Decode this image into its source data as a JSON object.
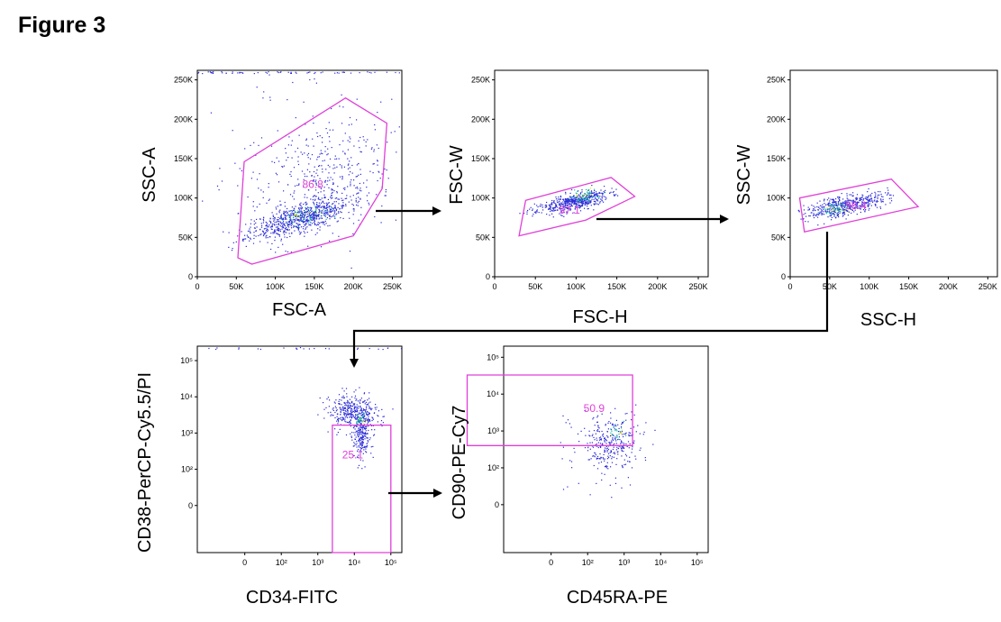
{
  "figure_title": "Figure 3",
  "colors": {
    "gate": "#e040d8",
    "dots": "#2a2ad8",
    "dense": "#14b8a0",
    "hot": "#e8e020",
    "axis": "#000000"
  },
  "chart_data": [
    {
      "id": "p1",
      "type": "scatter",
      "xlabel": "FSC-A",
      "ylabel": "SSC-A",
      "scale": "linear",
      "xlim": [
        0,
        262144
      ],
      "ylim": [
        0,
        262144
      ],
      "x_ticks": [
        {
          "v": 0,
          "label": "0"
        },
        {
          "v": 50000,
          "label": "50K"
        },
        {
          "v": 100000,
          "label": "100K"
        },
        {
          "v": 150000,
          "label": "150K"
        },
        {
          "v": 200000,
          "label": "200K"
        },
        {
          "v": 250000,
          "label": "250K"
        }
      ],
      "y_ticks": [
        {
          "v": 0,
          "label": "0"
        },
        {
          "v": 50000,
          "label": "50K"
        },
        {
          "v": 100000,
          "label": "100K"
        },
        {
          "v": 150000,
          "label": "150K"
        },
        {
          "v": 200000,
          "label": "200K"
        },
        {
          "v": 250000,
          "label": "250K"
        }
      ],
      "gate": {
        "label": "86.8",
        "label_at": [
          148000,
          113000
        ],
        "polygon": [
          [
            70000,
            16000
          ],
          [
            200000,
            52000
          ],
          [
            237000,
            112000
          ],
          [
            243000,
            195000
          ],
          [
            190000,
            227000
          ],
          [
            60000,
            146000
          ],
          [
            52000,
            24000
          ]
        ]
      },
      "population": {
        "seed": 11,
        "clusters": [
          {
            "n": 700,
            "cx": 130000,
            "cy": 75000,
            "sx": 32000,
            "sy": 13000,
            "rho": 0.72
          },
          {
            "n": 350,
            "cx": 165000,
            "cy": 125000,
            "sx": 45000,
            "sy": 38000,
            "rho": 0.45
          },
          {
            "n": 110,
            "cx": 130000,
            "cy": 140000,
            "sx": 70000,
            "sy": 65000,
            "rho": 0.0
          }
        ],
        "dense_core": {
          "cx": 140000,
          "cy": 78000,
          "sx": 14000,
          "sy": 6000,
          "n": 70
        },
        "top_band": 60
      }
    },
    {
      "id": "p2",
      "type": "scatter",
      "xlabel": "FSC-H",
      "ylabel": "FSC-W",
      "scale": "linear",
      "xlim": [
        0,
        262144
      ],
      "ylim": [
        0,
        262144
      ],
      "x_ticks": [
        {
          "v": 0,
          "label": "0"
        },
        {
          "v": 50000,
          "label": "50K"
        },
        {
          "v": 100000,
          "label": "100K"
        },
        {
          "v": 150000,
          "label": "150K"
        },
        {
          "v": 200000,
          "label": "200K"
        },
        {
          "v": 250000,
          "label": "250K"
        }
      ],
      "y_ticks": [
        {
          "v": 0,
          "label": "0"
        },
        {
          "v": 50000,
          "label": "50K"
        },
        {
          "v": 100000,
          "label": "100K"
        },
        {
          "v": 150000,
          "label": "150K"
        },
        {
          "v": 200000,
          "label": "200K"
        },
        {
          "v": 250000,
          "label": "250K"
        }
      ],
      "gate": {
        "label": "97.1",
        "label_at": [
          92000,
          80000
        ],
        "polygon": [
          [
            30000,
            52000
          ],
          [
            112000,
            72000
          ],
          [
            172000,
            102000
          ],
          [
            143000,
            126000
          ],
          [
            38000,
            97000
          ]
        ]
      },
      "population": {
        "seed": 23,
        "clusters": [
          {
            "n": 520,
            "cx": 95000,
            "cy": 95000,
            "sx": 22000,
            "sy": 7000,
            "rho": 0.65
          }
        ],
        "dense_core": {
          "cx": 108000,
          "cy": 102000,
          "sx": 10000,
          "sy": 4000,
          "n": 60
        },
        "top_band": 0
      }
    },
    {
      "id": "p3",
      "type": "scatter",
      "xlabel": "SSC-H",
      "ylabel": "SSC-W",
      "scale": "linear",
      "xlim": [
        0,
        262144
      ],
      "ylim": [
        0,
        262144
      ],
      "x_ticks": [
        {
          "v": 0,
          "label": "0"
        },
        {
          "v": 50000,
          "label": "50K"
        },
        {
          "v": 100000,
          "label": "100K"
        },
        {
          "v": 150000,
          "label": "150K"
        },
        {
          "v": 200000,
          "label": "200K"
        },
        {
          "v": 250000,
          "label": "250K"
        }
      ],
      "y_ticks": [
        {
          "v": 0,
          "label": "0"
        },
        {
          "v": 50000,
          "label": "50K"
        },
        {
          "v": 100000,
          "label": "100K"
        },
        {
          "v": 150000,
          "label": "150K"
        },
        {
          "v": 200000,
          "label": "200K"
        },
        {
          "v": 250000,
          "label": "250K"
        }
      ],
      "gate": {
        "label": "98.4",
        "label_at": [
          83000,
          86000
        ],
        "polygon": [
          [
            18000,
            57000
          ],
          [
            162000,
            89000
          ],
          [
            128000,
            124000
          ],
          [
            12000,
            100000
          ]
        ]
      },
      "population": {
        "seed": 37,
        "clusters": [
          {
            "n": 480,
            "cx": 70000,
            "cy": 92000,
            "sx": 25000,
            "sy": 8000,
            "rho": 0.6
          }
        ],
        "dense_core": {
          "cx": 58000,
          "cy": 87000,
          "sx": 9000,
          "sy": 4000,
          "n": 60
        },
        "top_band": 0
      }
    },
    {
      "id": "p4",
      "type": "scatter",
      "xlabel": "CD34-FITC",
      "ylabel": "CD38-PerCP-Cy5.5/PI",
      "scale": "biexponential",
      "xlim": [
        -300,
        200000
      ],
      "ylim": [
        -300,
        250000
      ],
      "x_ticks": [
        {
          "v": 0,
          "label": "0"
        },
        {
          "v": 100,
          "label": "10²"
        },
        {
          "v": 1000,
          "label": "10³"
        },
        {
          "v": 10000,
          "label": "10⁴"
        },
        {
          "v": 100000,
          "label": "10⁵"
        }
      ],
      "y_ticks": [
        {
          "v": 0,
          "label": "0"
        },
        {
          "v": 100,
          "label": "10²"
        },
        {
          "v": 1000,
          "label": "10³"
        },
        {
          "v": 10000,
          "label": "10⁴"
        },
        {
          "v": 100000,
          "label": "10⁵"
        }
      ],
      "gate": {
        "label": "25.1",
        "label_at": [
          9000,
          200
        ],
        "polygon": [
          [
            2500,
            -300
          ],
          [
            100000,
            -300
          ],
          [
            100000,
            1650
          ],
          [
            2500,
            1650
          ]
        ]
      },
      "population": {
        "seed": 53,
        "log_clusters": [
          {
            "n": 380,
            "cx": 4.0,
            "cy": 3.55,
            "sx": 0.38,
            "sy": 0.27,
            "rho": -0.15
          },
          {
            "n": 200,
            "cx": 4.2,
            "cy": 2.95,
            "sx": 0.12,
            "sy": 0.35,
            "rho": 0.0
          }
        ],
        "dense_core": {
          "cx": 4.15,
          "cy": 3.4,
          "sx": 0.07,
          "sy": 0.08,
          "n": 40
        },
        "top_band": 25
      }
    },
    {
      "id": "p5",
      "type": "scatter",
      "xlabel": "CD45RA-PE",
      "ylabel": "CD90-PE-Cy7",
      "scale": "biexponential",
      "xlim": [
        -300,
        200000
      ],
      "ylim": [
        -300,
        200000
      ],
      "x_ticks": [
        {
          "v": 0,
          "label": "0"
        },
        {
          "v": 100,
          "label": "10²"
        },
        {
          "v": 1000,
          "label": "10³"
        },
        {
          "v": 10000,
          "label": "10⁴"
        },
        {
          "v": 100000,
          "label": "10⁵"
        }
      ],
      "y_ticks": [
        {
          "v": 0,
          "label": "0"
        },
        {
          "v": 100,
          "label": "10²"
        },
        {
          "v": 1000,
          "label": "10³"
        },
        {
          "v": 10000,
          "label": "10⁴"
        },
        {
          "v": 100000,
          "label": "10⁵"
        }
      ],
      "gate": {
        "label": "50.9",
        "label_at": [
          150,
          3300
        ],
        "polygon": [
          [
            -230,
            400
          ],
          [
            1700,
            400
          ],
          [
            1700,
            33000
          ],
          [
            -230,
            33000
          ]
        ]
      },
      "population": {
        "seed": 71,
        "log_clusters": [
          {
            "n": 330,
            "cx": 2.6,
            "cy": 2.65,
            "sx": 0.45,
            "sy": 0.42,
            "rho": 0.1
          }
        ],
        "dense_core": {
          "cx": 2.75,
          "cy": 2.95,
          "sx": 0.12,
          "sy": 0.12,
          "n": 25
        },
        "top_band": 0
      }
    }
  ],
  "arrows": [
    {
      "id": "arrow-1-to-2",
      "from": "p1",
      "to": "p2"
    },
    {
      "id": "arrow-2-to-3",
      "from": "p2",
      "to": "p3"
    },
    {
      "id": "arrow-3-to-4",
      "from": "p3",
      "to": "p4"
    },
    {
      "id": "arrow-4-to-5",
      "from": "p4",
      "to": "p5"
    }
  ]
}
